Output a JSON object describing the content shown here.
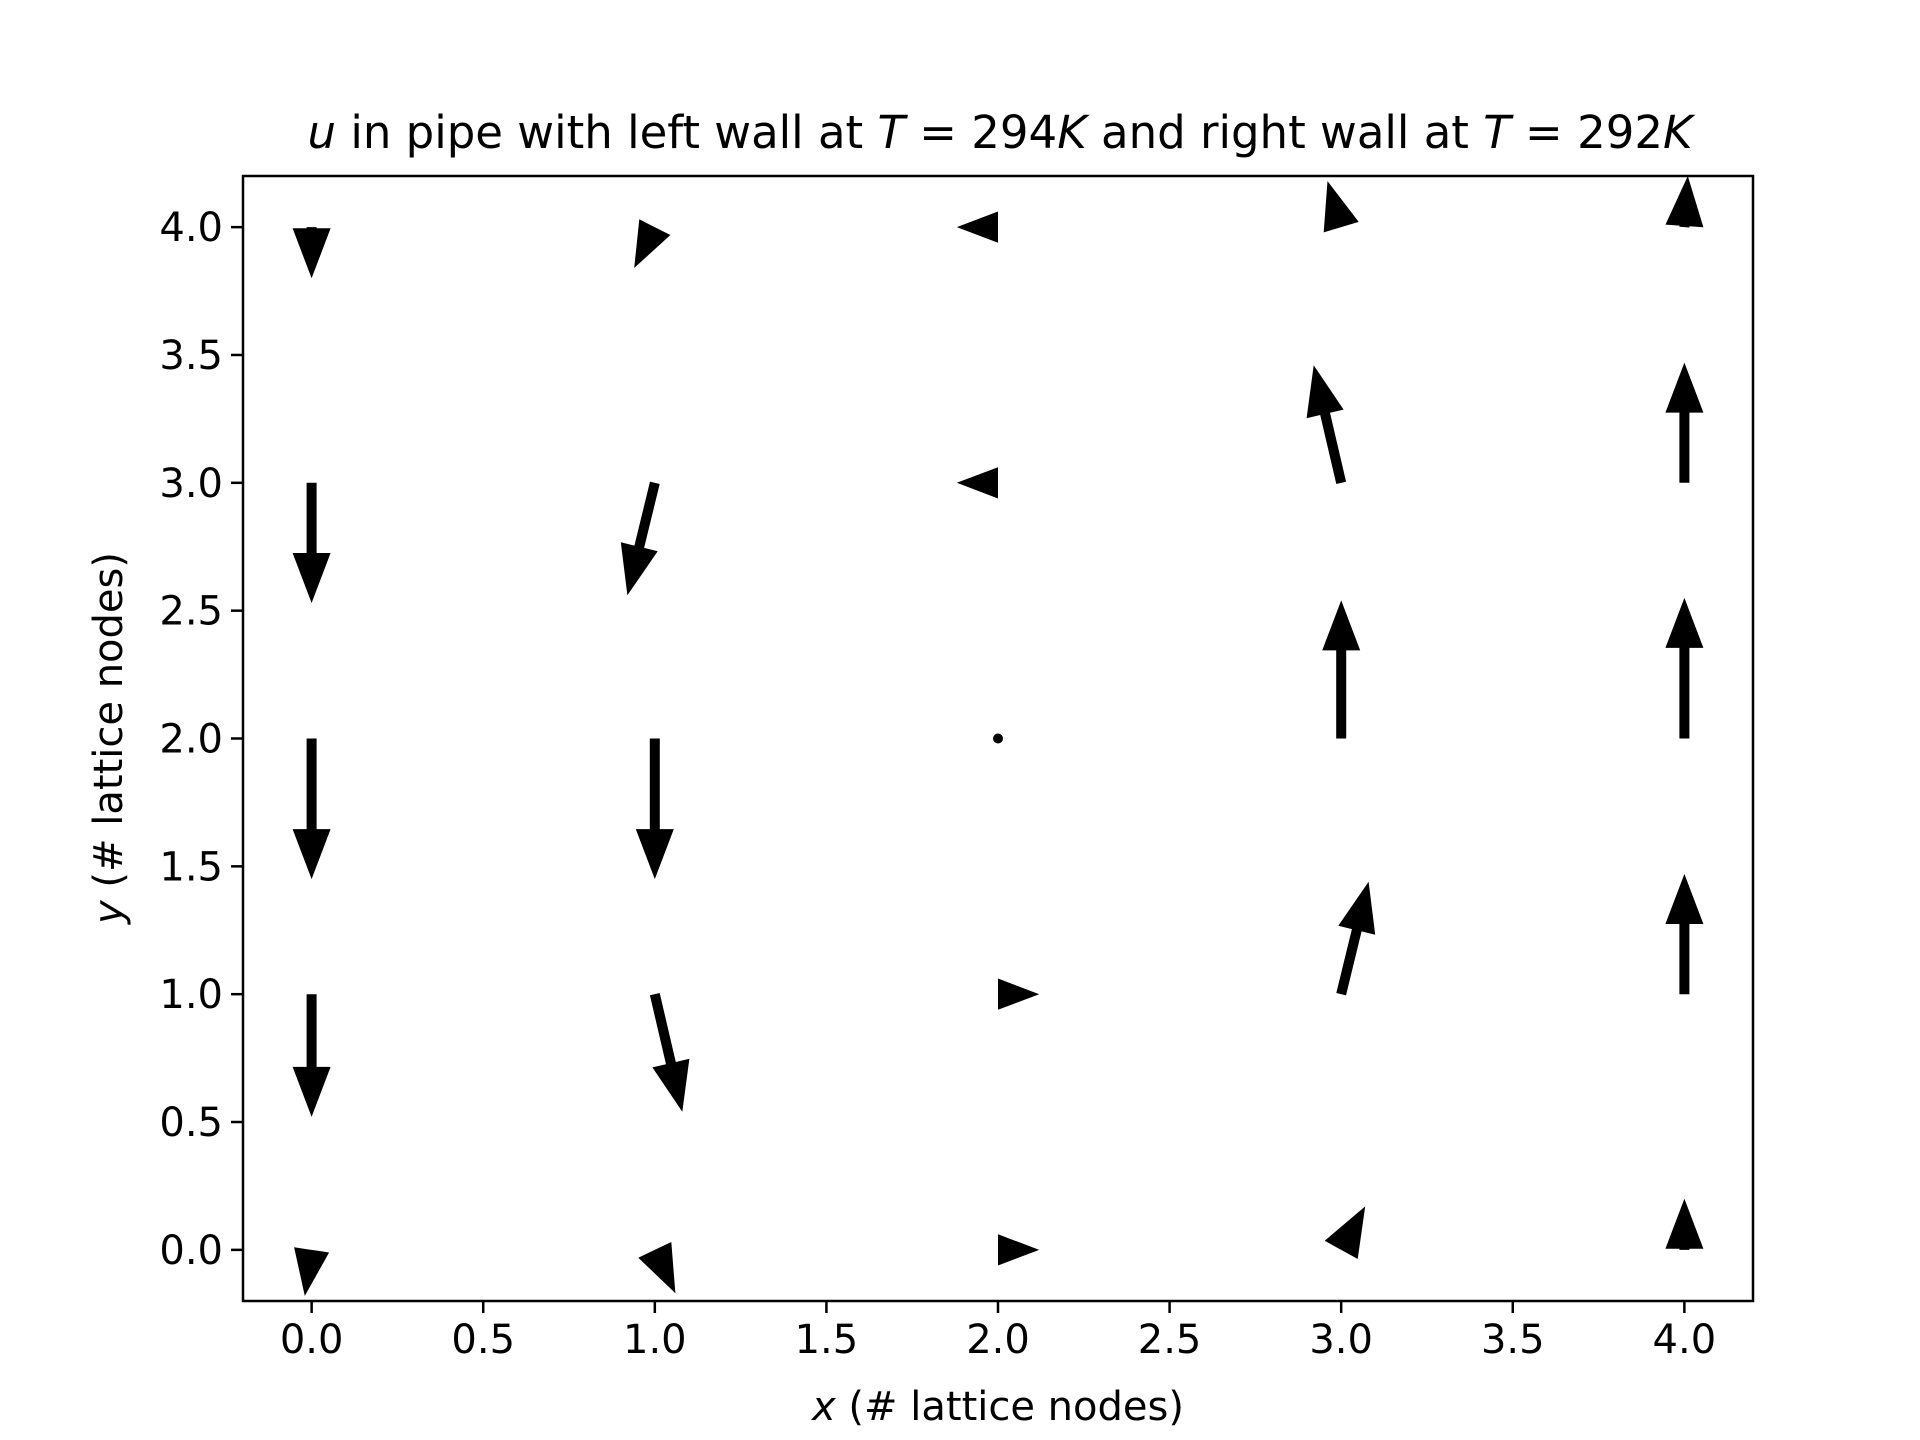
{
  "chart_data": {
    "type": "quiver",
    "title_parts": [
      {
        "text": "u",
        "italic": true
      },
      {
        "text": " in pipe with left wall at ",
        "italic": false
      },
      {
        "text": "T",
        "italic": true
      },
      {
        "text": " = 294",
        "italic": false
      },
      {
        "text": "K",
        "italic": true
      },
      {
        "text": " and right wall at ",
        "italic": false
      },
      {
        "text": "T",
        "italic": true
      },
      {
        "text": " = 292",
        "italic": false
      },
      {
        "text": "K",
        "italic": true
      }
    ],
    "xlabel_var": "x",
    "xlabel_rest": " (# lattice nodes)",
    "ylabel_var": "y",
    "ylabel_rest": " (# lattice nodes)",
    "xlim": [
      -0.2,
      4.2
    ],
    "ylim": [
      -0.2,
      4.2
    ],
    "xticks": [
      "0.0",
      "0.5",
      "1.0",
      "1.5",
      "2.0",
      "2.5",
      "3.0",
      "3.5",
      "4.0"
    ],
    "yticks": [
      "0.0",
      "0.5",
      "1.0",
      "1.5",
      "2.0",
      "2.5",
      "3.0",
      "3.5",
      "4.0"
    ],
    "grid": false,
    "arrow_color": "#000000",
    "vectors": [
      {
        "x": 0,
        "y": 4,
        "u": 0.0,
        "v": -0.2
      },
      {
        "x": 1,
        "y": 4,
        "u": -0.06,
        "v": -0.16
      },
      {
        "x": 2,
        "y": 4,
        "u": -0.12,
        "v": 0.0
      },
      {
        "x": 3,
        "y": 4,
        "u": -0.04,
        "v": 0.18
      },
      {
        "x": 4,
        "y": 4,
        "u": 0.01,
        "v": 0.2
      },
      {
        "x": 0,
        "y": 3,
        "u": 0.0,
        "v": -0.47
      },
      {
        "x": 1,
        "y": 3,
        "u": -0.08,
        "v": -0.44
      },
      {
        "x": 2,
        "y": 3,
        "u": -0.12,
        "v": 0.0
      },
      {
        "x": 3,
        "y": 3,
        "u": -0.08,
        "v": 0.46
      },
      {
        "x": 4,
        "y": 3,
        "u": 0.0,
        "v": 0.47
      },
      {
        "x": 0,
        "y": 2,
        "u": 0.0,
        "v": -0.55
      },
      {
        "x": 1,
        "y": 2,
        "u": 0.0,
        "v": -0.55
      },
      {
        "x": 2,
        "y": 2,
        "u": 0.0,
        "v": 0.0
      },
      {
        "x": 3,
        "y": 2,
        "u": 0.0,
        "v": 0.54
      },
      {
        "x": 4,
        "y": 2,
        "u": 0.0,
        "v": 0.55
      },
      {
        "x": 0,
        "y": 1,
        "u": 0.0,
        "v": -0.48
      },
      {
        "x": 1,
        "y": 1,
        "u": 0.08,
        "v": -0.46
      },
      {
        "x": 2,
        "y": 1,
        "u": 0.12,
        "v": 0.0
      },
      {
        "x": 3,
        "y": 1,
        "u": 0.08,
        "v": 0.44
      },
      {
        "x": 4,
        "y": 1,
        "u": 0.0,
        "v": 0.47
      },
      {
        "x": 0,
        "y": 0,
        "u": -0.02,
        "v": -0.18
      },
      {
        "x": 1,
        "y": 0,
        "u": 0.06,
        "v": -0.17
      },
      {
        "x": 2,
        "y": 0,
        "u": 0.12,
        "v": 0.0
      },
      {
        "x": 3,
        "y": 0,
        "u": 0.07,
        "v": 0.17
      },
      {
        "x": 4,
        "y": 0,
        "u": 0.0,
        "v": 0.2
      }
    ]
  }
}
